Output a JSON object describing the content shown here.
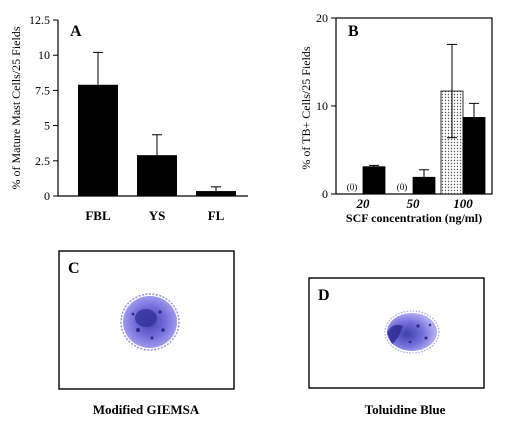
{
  "chart_data": [
    {
      "panel": "A",
      "type": "bar",
      "ylabel": "% of Mature Mast Cells/25 Fields",
      "ylim": [
        0,
        12.5
      ],
      "yticks": [
        0,
        2.5,
        5,
        7.5,
        10,
        12.5
      ],
      "ytick_labels": [
        "0",
        "2.5",
        "5",
        "7.5",
        "10",
        "12.5"
      ],
      "categories": [
        "FBL",
        "YS",
        "FL"
      ],
      "values": [
        7.9,
        2.9,
        0.35
      ],
      "errors": [
        2.3,
        1.45,
        0.3
      ],
      "bar_color": "#000000"
    },
    {
      "panel": "B",
      "type": "bar",
      "ylabel": "% of TB+ Cells/25 Fields",
      "xlabel": "SCF concentration (ng/ml)",
      "ylim": [
        0,
        20
      ],
      "yticks": [
        0,
        10,
        20
      ],
      "ytick_labels": [
        "0",
        "10",
        "20"
      ],
      "categories": [
        "20",
        "50",
        "100"
      ],
      "series": [
        {
          "values": [
            0,
            0,
            11.7
          ],
          "errors": [
            0,
            0,
            5.3
          ],
          "fill": "dotted",
          "value_labels": [
            "(0)",
            "(0)",
            ""
          ]
        },
        {
          "values": [
            3.1,
            1.9,
            8.7
          ],
          "errors": [
            0.15,
            0.85,
            1.6
          ],
          "fill": "#000000"
        }
      ]
    }
  ],
  "images": [
    {
      "panel": "C",
      "caption": "Modified GIEMSA",
      "stain_color": "#5d55c8"
    },
    {
      "panel": "D",
      "caption": "Toluidine Blue",
      "stain_color": "#4a44c4"
    }
  ]
}
